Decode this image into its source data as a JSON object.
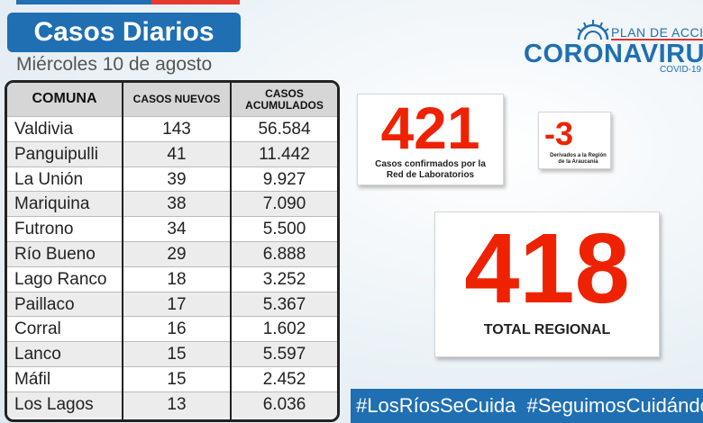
{
  "colors": {
    "brand_blue": "#1f6fb2",
    "accent_red": "#ee2200",
    "table_header": "#d6d6d6",
    "row_alt": "#ececec"
  },
  "header": {
    "title": "Casos Diarios",
    "date": "Miércoles 10 de agosto"
  },
  "logo": {
    "plan": "PLAN DE ACCIÓN",
    "name": "CORONAVIRUS",
    "sub": "COVID-19"
  },
  "table": {
    "headers": [
      "COMUNA",
      "CASOS NUEVOS",
      "CASOS ACUMULADOS"
    ],
    "rows": [
      {
        "comuna": "Valdivia",
        "nuevos": "143",
        "acumulados": "56.584"
      },
      {
        "comuna": "Panguipulli",
        "nuevos": "41",
        "acumulados": "11.442"
      },
      {
        "comuna": "La Unión",
        "nuevos": "39",
        "acumulados": "9.927"
      },
      {
        "comuna": "Mariquina",
        "nuevos": "38",
        "acumulados": "7.090"
      },
      {
        "comuna": "Futrono",
        "nuevos": "34",
        "acumulados": "5.500"
      },
      {
        "comuna": "Río Bueno",
        "nuevos": "29",
        "acumulados": "6.888"
      },
      {
        "comuna": "Lago Ranco",
        "nuevos": "18",
        "acumulados": "3.252"
      },
      {
        "comuna": "Paillaco",
        "nuevos": "17",
        "acumulados": "5.367"
      },
      {
        "comuna": "Corral",
        "nuevos": "16",
        "acumulados": "1.602"
      },
      {
        "comuna": "Lanco",
        "nuevos": "15",
        "acumulados": "5.597"
      },
      {
        "comuna": "Máfil",
        "nuevos": "15",
        "acumulados": "2.452"
      },
      {
        "comuna": "Los Lagos",
        "nuevos": "13",
        "acumulados": "6.036"
      }
    ]
  },
  "stats": {
    "confirmed": {
      "value": "421",
      "label": "Casos confirmados por la Red de Laboratorios"
    },
    "derived": {
      "value": "-3",
      "label": "Derivados a la Región de la Araucanía"
    },
    "total": {
      "value": "418",
      "label": "TOTAL REGIONAL"
    }
  },
  "hashtags": "#LosRíosSeCuida  #SeguimosCuidándonos"
}
